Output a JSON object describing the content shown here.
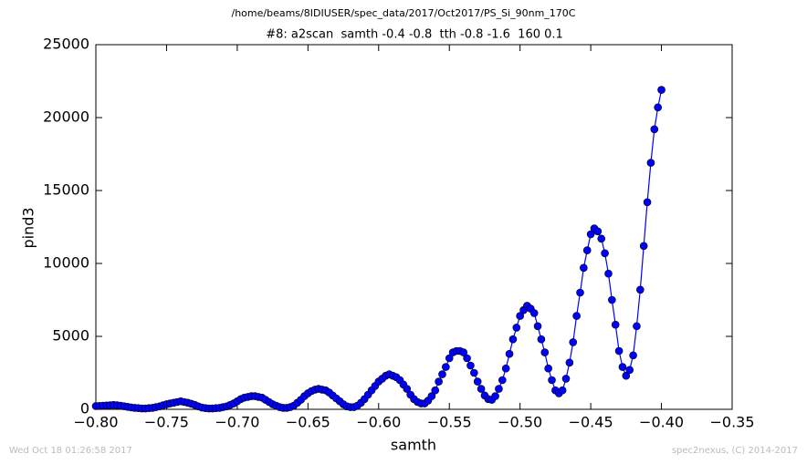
{
  "chart_data": {
    "type": "line",
    "suptitle": "/home/beams/8IDIUSER/spec_data/2017/Oct2017/PS_Si_90nm_170C",
    "title": "#8: a2scan  samth -0.4 -0.8  tth -0.8 -1.6  160 0.1",
    "xlabel": "samth",
    "ylabel": "pind3",
    "footer_left": "Wed Oct 18 01:26:58 2017",
    "footer_right": "spec2nexus, (C) 2014-2017",
    "xlim": [
      -0.8,
      -0.35
    ],
    "ylim": [
      0,
      25000
    ],
    "xticks": [
      {
        "value": -0.8,
        "label": "−0.80"
      },
      {
        "value": -0.75,
        "label": "−0.75"
      },
      {
        "value": -0.7,
        "label": "−0.70"
      },
      {
        "value": -0.65,
        "label": "−0.65"
      },
      {
        "value": -0.6,
        "label": "−0.60"
      },
      {
        "value": -0.55,
        "label": "−0.55"
      },
      {
        "value": -0.5,
        "label": "−0.50"
      },
      {
        "value": -0.45,
        "label": "−0.45"
      },
      {
        "value": -0.4,
        "label": "−0.40"
      },
      {
        "value": -0.35,
        "label": "−0.35"
      }
    ],
    "yticks": [
      0,
      5000,
      10000,
      15000,
      20000,
      25000
    ],
    "grid": false,
    "series": [
      {
        "name": "pind3",
        "color": "#0000ff",
        "x": [
          -0.8,
          -0.7975,
          -0.795,
          -0.7925,
          -0.79,
          -0.7875,
          -0.785,
          -0.7825,
          -0.78,
          -0.7775,
          -0.775,
          -0.7725,
          -0.77,
          -0.7675,
          -0.765,
          -0.7625,
          -0.76,
          -0.7575,
          -0.755,
          -0.7525,
          -0.75,
          -0.7475,
          -0.745,
          -0.7425,
          -0.74,
          -0.7375,
          -0.735,
          -0.7325,
          -0.73,
          -0.7275,
          -0.725,
          -0.7225,
          -0.72,
          -0.7175,
          -0.715,
          -0.7125,
          -0.71,
          -0.7075,
          -0.705,
          -0.7025,
          -0.7,
          -0.6975,
          -0.695,
          -0.6925,
          -0.69,
          -0.6875,
          -0.685,
          -0.6825,
          -0.68,
          -0.6775,
          -0.675,
          -0.6725,
          -0.67,
          -0.6675,
          -0.665,
          -0.6625,
          -0.66,
          -0.6575,
          -0.655,
          -0.6525,
          -0.65,
          -0.6475,
          -0.645,
          -0.6425,
          -0.64,
          -0.6375,
          -0.635,
          -0.6325,
          -0.63,
          -0.6275,
          -0.625,
          -0.6225,
          -0.62,
          -0.6175,
          -0.615,
          -0.6125,
          -0.61,
          -0.6075,
          -0.605,
          -0.6025,
          -0.6,
          -0.5975,
          -0.595,
          -0.5925,
          -0.59,
          -0.5875,
          -0.585,
          -0.5825,
          -0.58,
          -0.5775,
          -0.575,
          -0.5725,
          -0.57,
          -0.5675,
          -0.565,
          -0.5625,
          -0.56,
          -0.5575,
          -0.555,
          -0.5525,
          -0.55,
          -0.5475,
          -0.545,
          -0.5425,
          -0.54,
          -0.5375,
          -0.535,
          -0.5325,
          -0.53,
          -0.5275,
          -0.525,
          -0.5225,
          -0.52,
          -0.5175,
          -0.515,
          -0.5125,
          -0.51,
          -0.5075,
          -0.505,
          -0.5025,
          -0.5,
          -0.4975,
          -0.495,
          -0.4925,
          -0.49,
          -0.4875,
          -0.485,
          -0.4825,
          -0.48,
          -0.4775,
          -0.475,
          -0.4725,
          -0.47,
          -0.4675,
          -0.465,
          -0.4625,
          -0.46,
          -0.4575,
          -0.455,
          -0.4525,
          -0.45,
          -0.4475,
          -0.445,
          -0.4425,
          -0.44,
          -0.4375,
          -0.435,
          -0.4325,
          -0.43,
          -0.4275,
          -0.425,
          -0.4225,
          -0.42,
          -0.4175,
          -0.415,
          -0.4125,
          -0.41,
          -0.4075,
          -0.405,
          -0.4025,
          -0.4
        ],
        "values": [
          220,
          230,
          250,
          260,
          280,
          300,
          280,
          250,
          210,
          170,
          130,
          100,
          80,
          60,
          60,
          80,
          100,
          150,
          200,
          280,
          350,
          400,
          450,
          500,
          550,
          500,
          450,
          380,
          300,
          200,
          120,
          80,
          60,
          60,
          80,
          100,
          150,
          200,
          300,
          400,
          550,
          700,
          800,
          850,
          900,
          900,
          850,
          800,
          650,
          500,
          350,
          250,
          150,
          100,
          100,
          150,
          250,
          450,
          650,
          900,
          1100,
          1250,
          1350,
          1400,
          1350,
          1300,
          1150,
          950,
          750,
          550,
          350,
          200,
          150,
          150,
          250,
          450,
          700,
          1000,
          1300,
          1600,
          1900,
          2100,
          2300,
          2400,
          2300,
          2200,
          2000,
          1700,
          1400,
          1000,
          700,
          500,
          400,
          400,
          600,
          900,
          1300,
          1900,
          2400,
          2900,
          3500,
          3900,
          4000,
          4000,
          3900,
          3500,
          3000,
          2500,
          1900,
          1400,
          950,
          700,
          650,
          900,
          1400,
          2000,
          2800,
          3800,
          4800,
          5600,
          6400,
          6800,
          7100,
          6900,
          6600,
          5700,
          4800,
          3900,
          2800,
          2000,
          1300,
          1100,
          1300,
          2100,
          3200,
          4600,
          6400,
          8000,
          9700,
          10900,
          12000,
          12400,
          12200,
          11700,
          10700,
          9300,
          7500,
          5800,
          4000,
          2900,
          2300,
          2700,
          3700,
          5700,
          8200,
          11200,
          14200,
          16900,
          19200,
          20700,
          21900
        ]
      }
    ]
  }
}
